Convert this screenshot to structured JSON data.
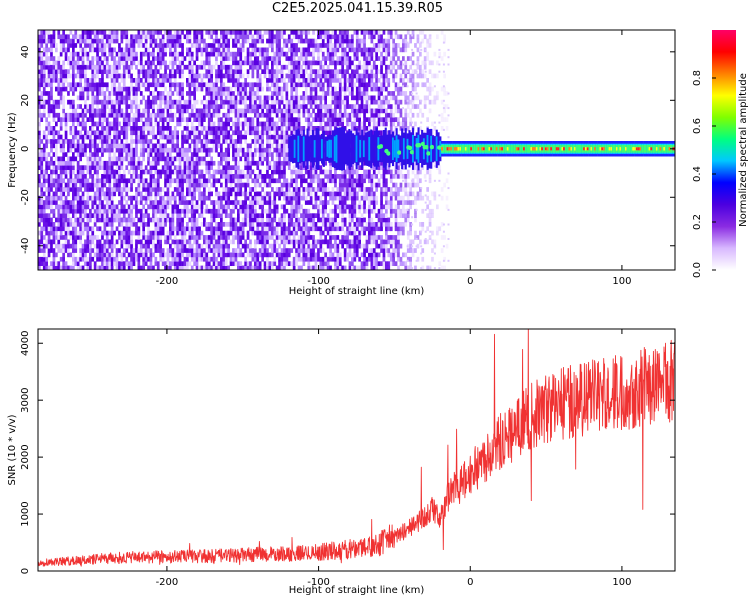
{
  "title": "C2E5.2025.041.15.39.R05",
  "chart_data": [
    {
      "type": "heatmap",
      "name": "spectrogram",
      "xlabel": "Height of straight line (km)",
      "ylabel": "Frequency (Hz)",
      "xlim": [
        -285,
        135
      ],
      "ylim": [
        -50,
        49
      ],
      "xticks": [
        -200,
        -100,
        0,
        100
      ],
      "xtick_labels": [
        "-200",
        "-100",
        "0",
        "100"
      ],
      "yticks": [
        -40,
        -20,
        0,
        20,
        40
      ],
      "ytick_labels": [
        "-40",
        "-20",
        "0",
        "20",
        "40"
      ],
      "colorbar": {
        "label": "Normalized spectral amplitude",
        "range": [
          0,
          1
        ],
        "ticks": [
          0,
          0.2,
          0.4,
          0.6,
          0.8
        ],
        "tick_labels": [
          "0.0",
          "0.2",
          "0.4",
          "0.6",
          "0.8"
        ],
        "colormap": [
          "#ffffff",
          "#d8b8ff",
          "#8a2be2",
          "#4b00e0",
          "#0000ff",
          "#00c8ff",
          "#00ff80",
          "#80ff00",
          "#ffff00",
          "#ff8000",
          "#ff0000",
          "#ff0066"
        ]
      },
      "features": {
        "broadband_noise_region_x": [
          -285,
          -15
        ],
        "signal_line_frequency": 0,
        "signal_line_x": [
          -120,
          135
        ],
        "strong_signal_x": [
          -20,
          135
        ]
      }
    },
    {
      "type": "line",
      "name": "snr",
      "xlabel": "Height of straight line (km)",
      "ylabel": "SNR (10 * v/v)",
      "xlim": [
        -285,
        135
      ],
      "ylim": [
        0,
        4250
      ],
      "xticks": [
        -200,
        -100,
        0,
        100
      ],
      "xtick_labels": [
        "-200",
        "-100",
        "0",
        "100"
      ],
      "yticks": [
        0,
        1000,
        2000,
        3000,
        4000
      ],
      "ytick_labels": [
        "0",
        "1000",
        "2000",
        "3000",
        "4000"
      ],
      "color": "#f03232",
      "x": [
        -285,
        -260,
        -240,
        -220,
        -200,
        -180,
        -160,
        -140,
        -120,
        -100,
        -80,
        -60,
        -50,
        -40,
        -30,
        -25,
        -20,
        -15,
        -10,
        -5,
        0,
        10,
        20,
        30,
        40,
        50,
        60,
        70,
        80,
        90,
        100,
        110,
        120,
        135
      ],
      "y": [
        150,
        180,
        220,
        240,
        250,
        260,
        270,
        290,
        300,
        330,
        380,
        480,
        600,
        750,
        950,
        1100,
        900,
        1300,
        1450,
        1550,
        1700,
        2000,
        2300,
        2500,
        2700,
        2850,
        2950,
        3000,
        3050,
        3100,
        3150,
        3200,
        3300,
        3350
      ]
    }
  ]
}
